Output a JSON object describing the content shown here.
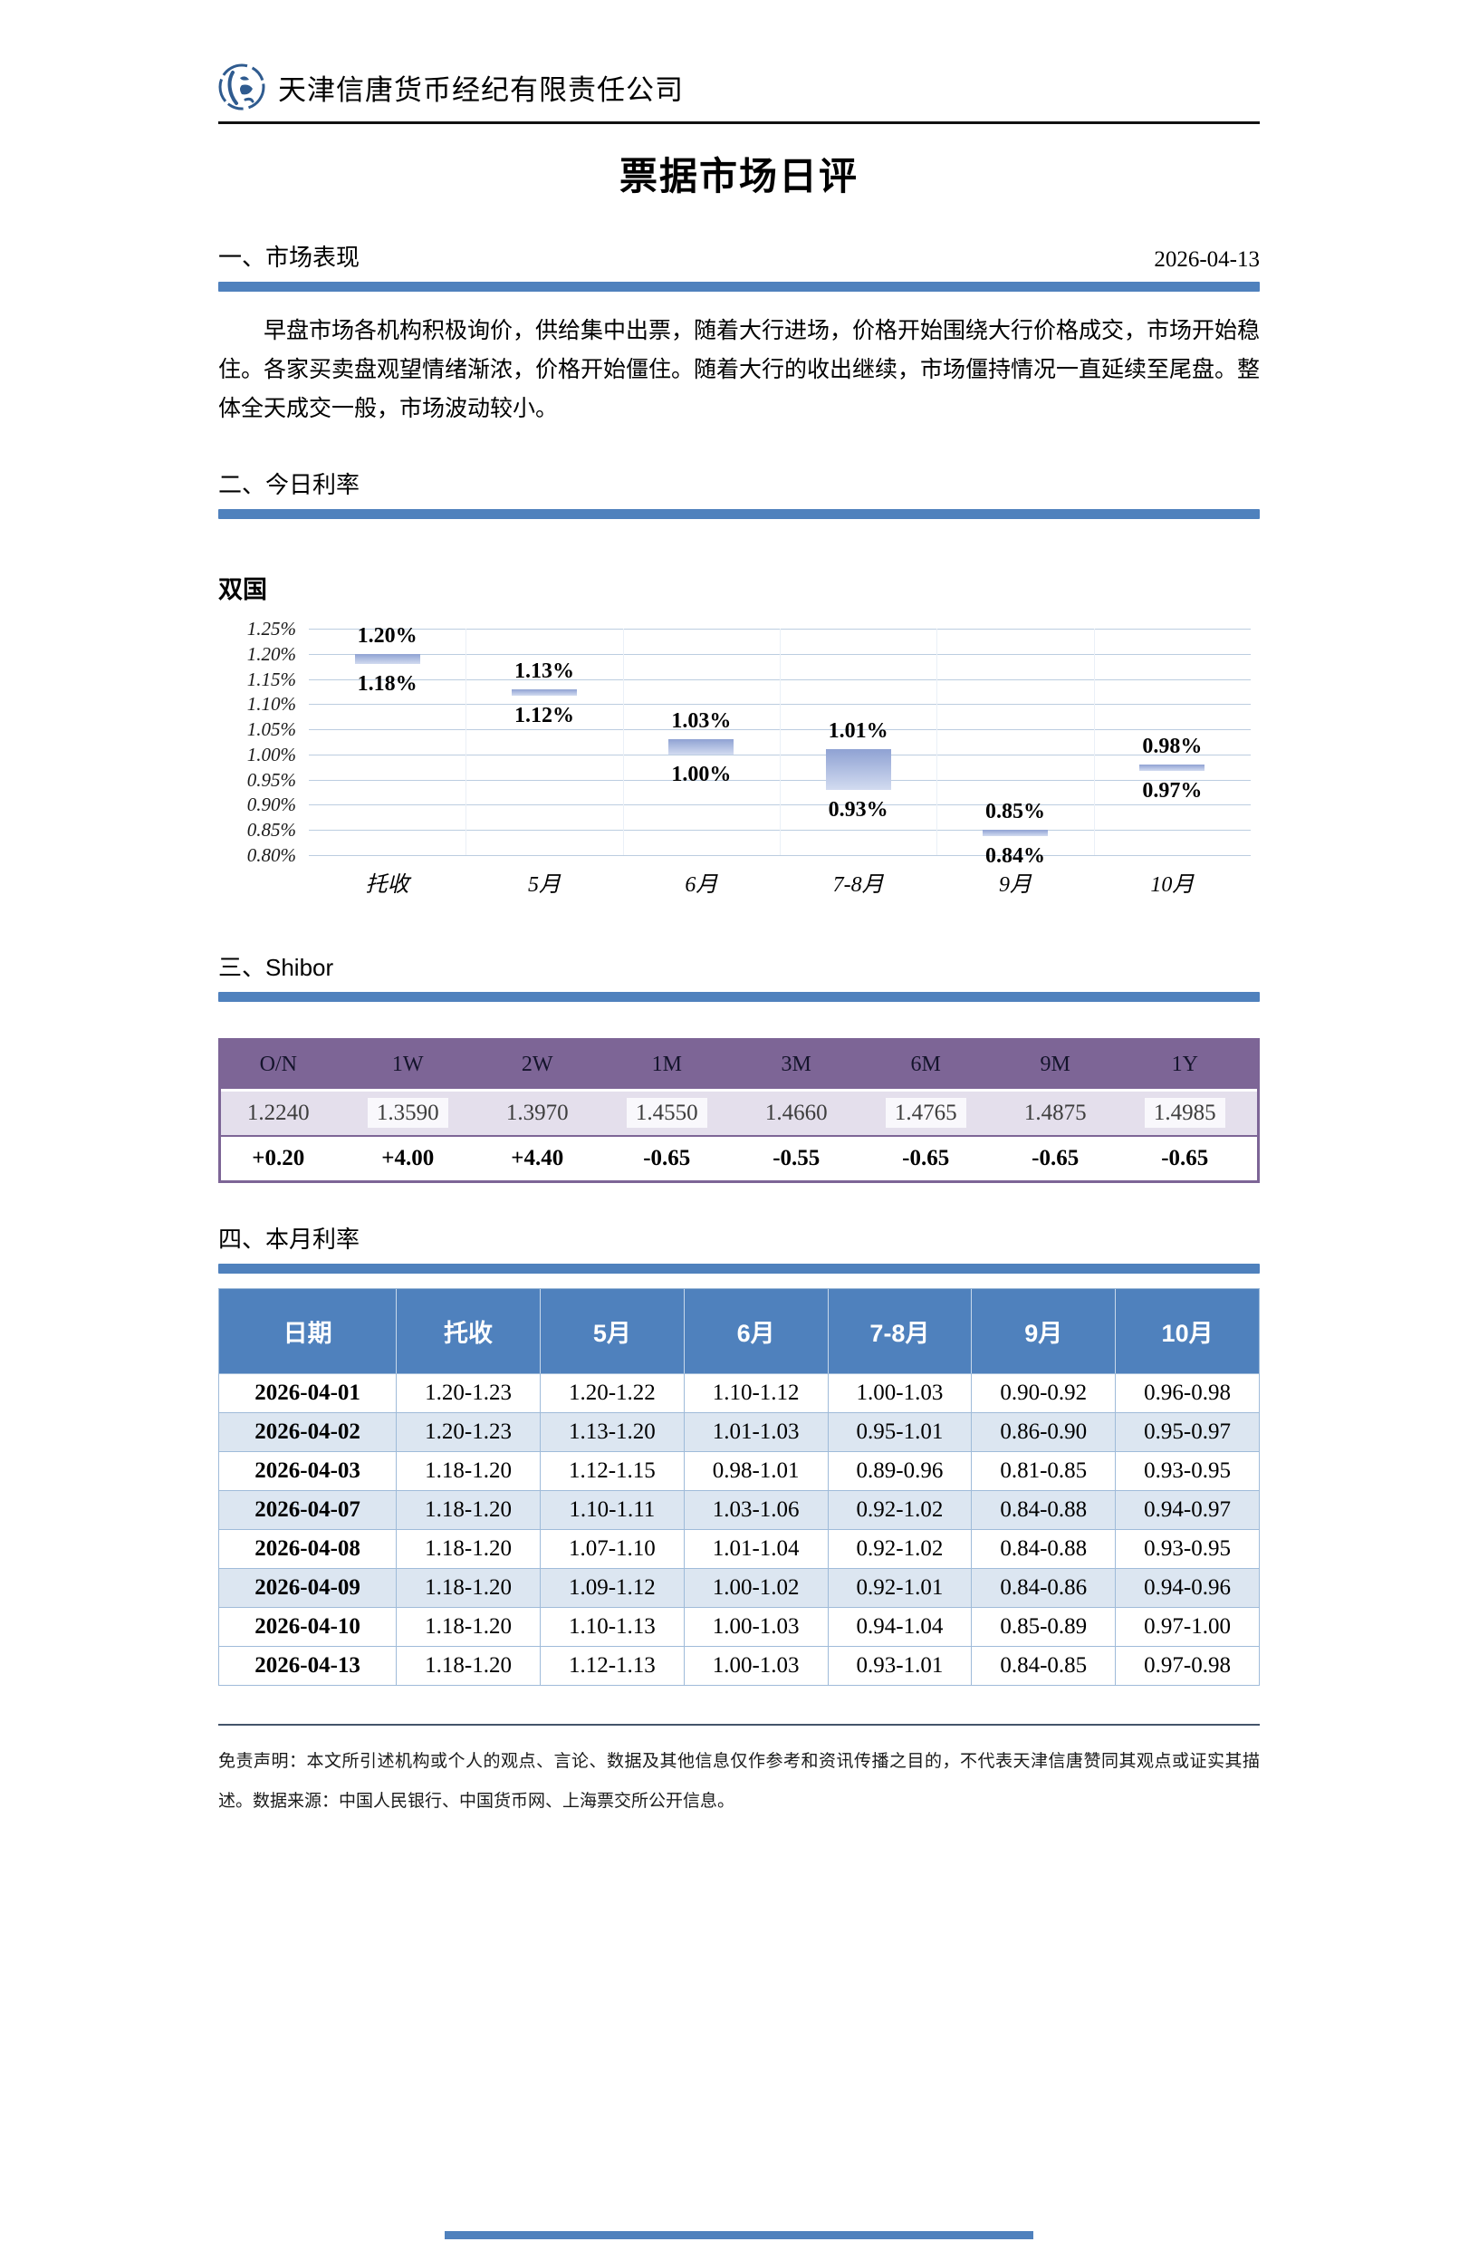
{
  "header": {
    "company": "天津信唐货币经纪有限责任公司",
    "logo_icon": "xintang-seal-icon"
  },
  "title": "票据市场日评",
  "sections": {
    "s1": {
      "heading": "一、市场表现",
      "date": "2026-04-13",
      "paragraph": "早盘市场各机构积极询价，供给集中出票，随着大行进场，价格开始围绕大行价格成交，市场开始稳住。各家买卖盘观望情绪渐浓，价格开始僵住。随着大行的收出继续，市场僵持情况一直延续至尾盘。整体全天成交一般，市场波动较小。"
    },
    "s2": {
      "heading": "二、今日利率"
    },
    "s3": {
      "heading": "三、Shibor"
    },
    "s4": {
      "heading": "四、本月利率"
    }
  },
  "chart_data": {
    "type": "bar",
    "subtype": "floating-range-bar",
    "title": "双国",
    "categories": [
      "托收",
      "5月",
      "6月",
      "7-8月",
      "9月",
      "10月"
    ],
    "series": [
      {
        "name": "high",
        "values": [
          1.2,
          1.13,
          1.03,
          1.01,
          0.85,
          0.98
        ]
      },
      {
        "name": "low",
        "values": [
          1.18,
          1.12,
          1.0,
          0.93,
          0.84,
          0.97
        ]
      }
    ],
    "labels_high": [
      "1.20%",
      "1.13%",
      "1.03%",
      "1.01%",
      "0.85%",
      "0.98%"
    ],
    "labels_low": [
      "1.18%",
      "1.12%",
      "1.00%",
      "0.93%",
      "0.84%",
      "0.97%"
    ],
    "ylim": [
      0.8,
      1.25
    ],
    "yticks": [
      1.25,
      1.2,
      1.15,
      1.1,
      1.05,
      1.0,
      0.95,
      0.9,
      0.85,
      0.8
    ],
    "ytick_labels": [
      "1.25%",
      "1.20%",
      "1.15%",
      "1.10%",
      "1.05%",
      "1.00%",
      "0.95%",
      "0.90%",
      "0.85%",
      "0.80%"
    ],
    "grid": true,
    "legend": "none",
    "xlabel": "",
    "ylabel": ""
  },
  "shibor_table": {
    "headers": [
      "O/N",
      "1W",
      "2W",
      "1M",
      "3M",
      "6M",
      "9M",
      "1Y"
    ],
    "values": [
      "1.2240",
      "1.3590",
      "1.3970",
      "1.4550",
      "1.4660",
      "1.4765",
      "1.4875",
      "1.4985"
    ],
    "highlighted": [
      false,
      true,
      false,
      true,
      false,
      true,
      false,
      true
    ],
    "changes": [
      "+0.20",
      "+4.00",
      "+4.40",
      "-0.65",
      "-0.55",
      "-0.65",
      "-0.65",
      "-0.65"
    ]
  },
  "monthly_table": {
    "headers": [
      "日期",
      "托收",
      "5月",
      "6月",
      "7-8月",
      "9月",
      "10月"
    ],
    "rows": [
      [
        "2026-04-01",
        "1.20-1.23",
        "1.20-1.22",
        "1.10-1.12",
        "1.00-1.03",
        "0.90-0.92",
        "0.96-0.98"
      ],
      [
        "2026-04-02",
        "1.20-1.23",
        "1.13-1.20",
        "1.01-1.03",
        "0.95-1.01",
        "0.86-0.90",
        "0.95-0.97"
      ],
      [
        "2026-04-03",
        "1.18-1.20",
        "1.12-1.15",
        "0.98-1.01",
        "0.89-0.96",
        "0.81-0.85",
        "0.93-0.95"
      ],
      [
        "2026-04-07",
        "1.18-1.20",
        "1.10-1.11",
        "1.03-1.06",
        "0.92-1.02",
        "0.84-0.88",
        "0.94-0.97"
      ],
      [
        "2026-04-08",
        "1.18-1.20",
        "1.07-1.10",
        "1.01-1.04",
        "0.92-1.02",
        "0.84-0.88",
        "0.93-0.95"
      ],
      [
        "2026-04-09",
        "1.18-1.20",
        "1.09-1.12",
        "1.00-1.02",
        "0.92-1.01",
        "0.84-0.86",
        "0.94-0.96"
      ],
      [
        "2026-04-10",
        "1.18-1.20",
        "1.10-1.13",
        "1.00-1.03",
        "0.94-1.04",
        "0.85-0.89",
        "0.97-1.00"
      ],
      [
        "2026-04-13",
        "1.18-1.20",
        "1.12-1.13",
        "1.00-1.03",
        "0.93-1.01",
        "0.84-0.85",
        "0.97-0.98"
      ]
    ],
    "shaded_row_indexes": [
      1,
      3,
      5
    ]
  },
  "disclaimer": "免责声明：本文所引述机构或个人的观点、言论、数据及其他信息仅作参考和资讯传播之目的，不代表天津信唐赞同其观点或证实其描述。数据来源：中国人民银行、中国货币网、上海票交所公开信息。",
  "colors": {
    "accent_blue": "#4F81BD",
    "table_alt_row": "#DCE6F1",
    "table_border": "#9FBBD9",
    "shibor_purple": "#7D6596",
    "shibor_light_purple": "#E4DFEC",
    "shibor_highlight": "#F9F8FC",
    "bar_gradient_top": "#8FA2D3",
    "bar_gradient_bottom": "#D2DBF0",
    "gridline": "#BCCDE0",
    "logo_blue": "#2F5B8F"
  }
}
